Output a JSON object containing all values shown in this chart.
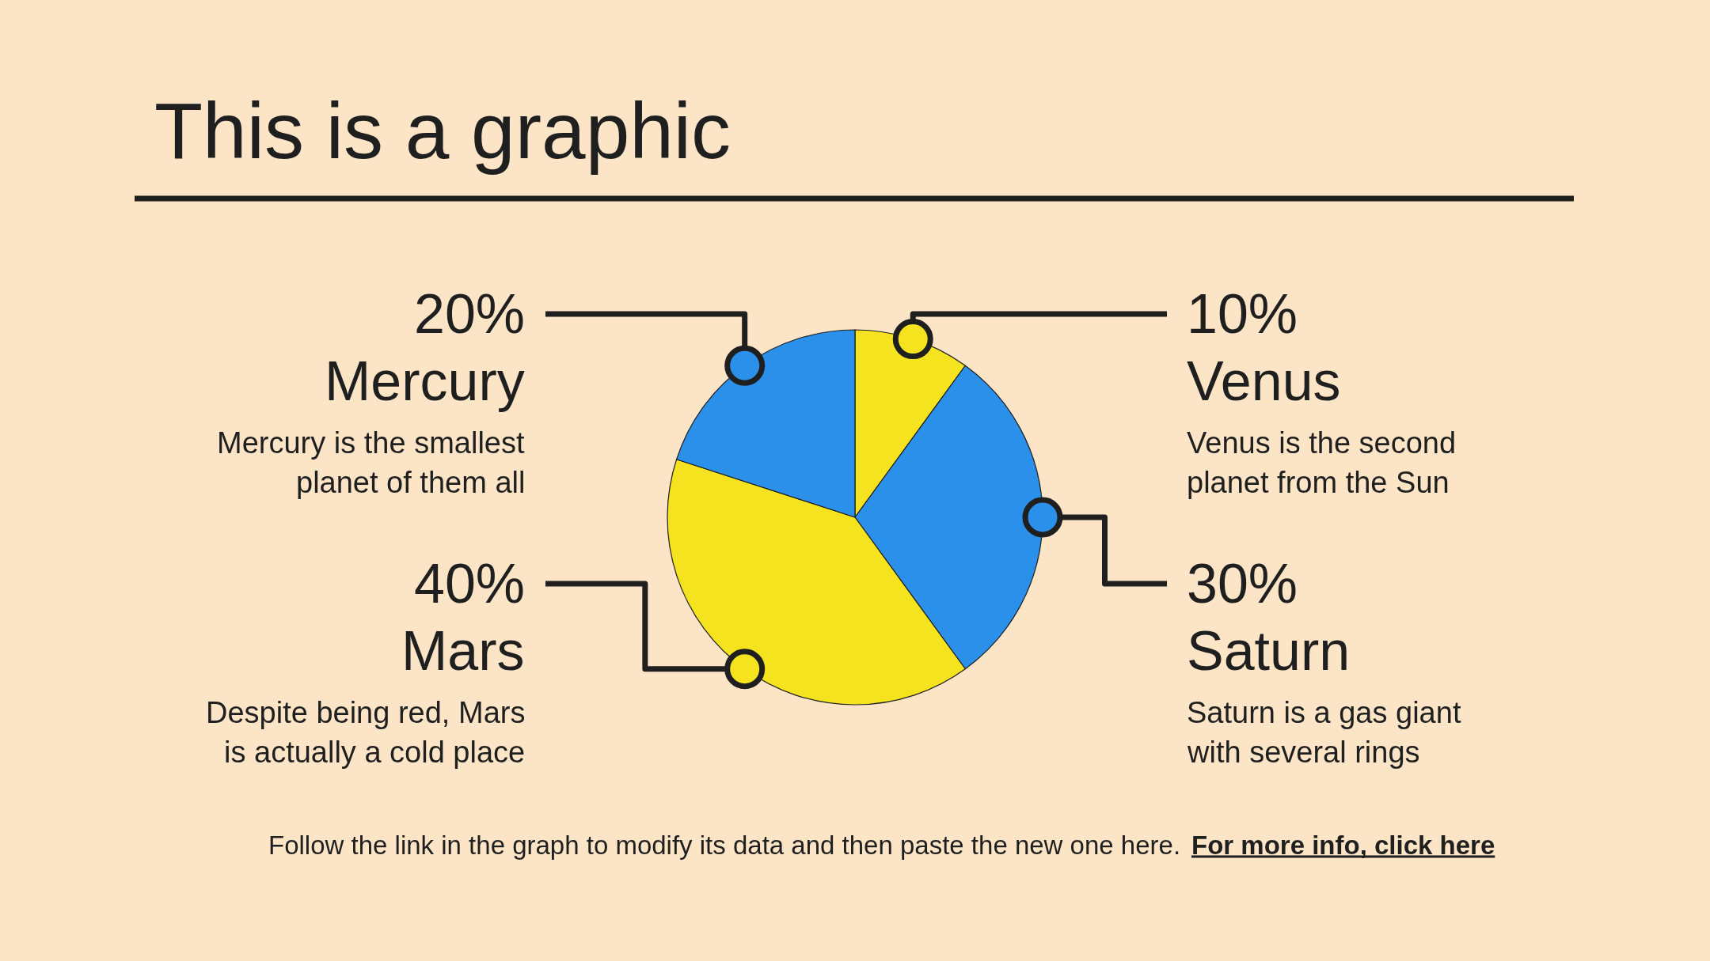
{
  "chart_data": {
    "type": "pie",
    "title": "This is a graphic",
    "categories": [
      "Venus",
      "Saturn",
      "Mars",
      "Mercury"
    ],
    "values": [
      10,
      30,
      40,
      20
    ],
    "value_labels": [
      "10%",
      "30%",
      "40%",
      "20%"
    ],
    "colors": [
      "#f5e31f",
      "#2b90ea",
      "#f5e31f",
      "#2b90ea"
    ],
    "annotations": [
      "Venus is the second planet from the Sun",
      "Saturn is a gas giant with several rings",
      "Despite being red, Mars is actually a cold place",
      "Mercury is the smallest planet of them all",
      "Follow the link in the graph to modify its data and then paste the new one here.",
      "For more info, click here"
    ]
  }
}
